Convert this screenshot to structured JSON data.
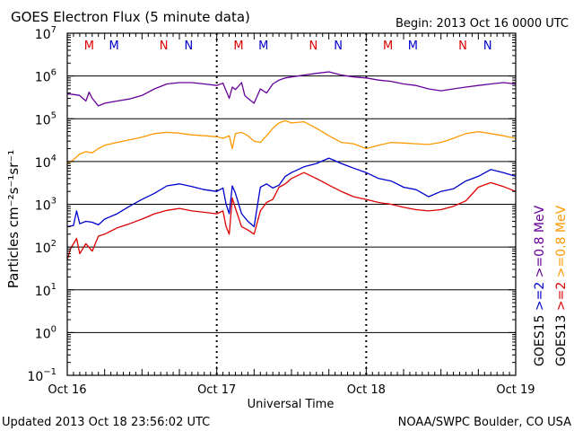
{
  "chart_data": {
    "type": "line",
    "title": "GOES Electron Flux (5 minute data)",
    "begin_label": "Begin: 2013 Oct 16 0000 UTC",
    "xlabel": "Universal Time",
    "ylabel": "Particles cm⁻²s⁻¹sr⁻¹",
    "updated_label": "Updated 2013 Oct 18 23:56:02 UTC",
    "source_label": "NOAA/SWPC Boulder, CO USA",
    "y_scale": "log",
    "ylim": [
      0.1,
      10000000
    ],
    "y_ticks": [
      {
        "value": 0.1,
        "base": "10",
        "exp": "−1"
      },
      {
        "value": 1,
        "base": "10",
        "exp": "0"
      },
      {
        "value": 10,
        "base": "10",
        "exp": "1"
      },
      {
        "value": 100,
        "base": "10",
        "exp": "2"
      },
      {
        "value": 1000,
        "base": "10",
        "exp": "3"
      },
      {
        "value": 10000,
        "base": "10",
        "exp": "4"
      },
      {
        "value": 100000,
        "base": "10",
        "exp": "5"
      },
      {
        "value": 1000000,
        "base": "10",
        "exp": "6"
      },
      {
        "value": 10000000,
        "base": "10",
        "exp": "7"
      }
    ],
    "xlim": [
      0,
      72
    ],
    "x_ticks": [
      {
        "hour": 0,
        "label": "Oct 16"
      },
      {
        "hour": 24,
        "label": "Oct 17"
      },
      {
        "hour": 48,
        "label": "Oct 18"
      },
      {
        "hour": 72,
        "label": "Oct 19"
      }
    ],
    "grid": true,
    "threshold": 1000,
    "markers": [
      {
        "hour": 3.5,
        "label": "M",
        "color": "#dd0000"
      },
      {
        "hour": 7.5,
        "label": "M",
        "color": "#0000cc"
      },
      {
        "hour": 15.5,
        "label": "N",
        "color": "#dd0000"
      },
      {
        "hour": 19.5,
        "label": "N",
        "color": "#0000cc"
      },
      {
        "hour": 27.5,
        "label": "M",
        "color": "#dd0000"
      },
      {
        "hour": 31.5,
        "label": "M",
        "color": "#0000cc"
      },
      {
        "hour": 39.5,
        "label": "N",
        "color": "#dd0000"
      },
      {
        "hour": 43.5,
        "label": "N",
        "color": "#0000cc"
      },
      {
        "hour": 51.5,
        "label": "M",
        "color": "#dd0000"
      },
      {
        "hour": 55.5,
        "label": "M",
        "color": "#0000cc"
      },
      {
        "hour": 63.5,
        "label": "N",
        "color": "#dd0000"
      },
      {
        "hour": 67.5,
        "label": "N",
        "color": "#0000cc"
      }
    ],
    "legend": {
      "position": "right",
      "columns": [
        {
          "satellite": "GOES15",
          "items": [
            {
              "text": ">=2",
              "color": "#0000cc"
            },
            {
              "text": ">=0.8 MeV",
              "color": "#660099"
            }
          ]
        },
        {
          "satellite": "GOES13",
          "items": [
            {
              "text": ">=2",
              "color": "#dd0000"
            },
            {
              "text": ">=0.8 MeV",
              "color": "#ff9900"
            }
          ]
        }
      ]
    },
    "series": [
      {
        "satellite": "GOES15",
        "energy": ">=0.8 MeV",
        "color": "#660099",
        "x": [
          0,
          1,
          2,
          3,
          3.5,
          4,
          5,
          6,
          8,
          10,
          12,
          14,
          16,
          18,
          20,
          22,
          24,
          25,
          26,
          26.5,
          27,
          28,
          28.5,
          29,
          30,
          31,
          32,
          33,
          34,
          35,
          36,
          38,
          40,
          42,
          44,
          46,
          48,
          50,
          52,
          54,
          56,
          58,
          60,
          62,
          64,
          66,
          68,
          70,
          72
        ],
        "y": [
          380000,
          370000,
          350000,
          260000,
          420000,
          300000,
          200000,
          230000,
          260000,
          290000,
          350000,
          500000,
          650000,
          700000,
          700000,
          650000,
          600000,
          680000,
          300000,
          550000,
          480000,
          700000,
          350000,
          300000,
          230000,
          500000,
          400000,
          650000,
          800000,
          900000,
          950000,
          1050000,
          1150000,
          1250000,
          1050000,
          950000,
          900000,
          800000,
          750000,
          650000,
          600000,
          500000,
          450000,
          500000,
          550000,
          600000,
          650000,
          700000,
          650000
        ]
      },
      {
        "satellite": "GOES13",
        "energy": ">=0.8 MeV",
        "color": "#ff9900",
        "x": [
          0,
          1,
          2,
          3,
          4,
          5,
          6,
          8,
          10,
          12,
          14,
          16,
          18,
          20,
          22,
          24,
          25,
          26,
          26.5,
          27,
          28,
          29,
          30,
          31,
          32,
          33,
          34,
          35,
          36,
          38,
          40,
          42,
          44,
          46,
          48,
          50,
          52,
          54,
          56,
          58,
          60,
          62,
          64,
          66,
          68,
          70,
          72
        ],
        "y": [
          9000,
          11000,
          15000,
          17000,
          16000,
          20000,
          24000,
          28000,
          32000,
          37000,
          45000,
          48000,
          46000,
          42000,
          40000,
          38000,
          35000,
          40000,
          20000,
          45000,
          48000,
          40000,
          30000,
          28000,
          40000,
          60000,
          80000,
          90000,
          80000,
          85000,
          60000,
          40000,
          28000,
          26000,
          20000,
          24000,
          28000,
          27000,
          26000,
          25000,
          28000,
          35000,
          45000,
          50000,
          45000,
          40000,
          35000
        ]
      },
      {
        "satellite": "GOES15",
        "energy": ">=2",
        "color": "#0000cc",
        "x": [
          0,
          1,
          1.5,
          2,
          3,
          4,
          5,
          6,
          8,
          10,
          12,
          14,
          16,
          18,
          20,
          22,
          24,
          25,
          25.5,
          26,
          26.5,
          27,
          28,
          29,
          30,
          31,
          32,
          33,
          34,
          35,
          36,
          38,
          40,
          42,
          44,
          46,
          48,
          50,
          52,
          54,
          56,
          58,
          60,
          62,
          64,
          66,
          68,
          70,
          72
        ],
        "y": [
          300,
          320,
          700,
          350,
          400,
          380,
          330,
          450,
          600,
          900,
          1300,
          1800,
          2700,
          3000,
          2600,
          2200,
          2000,
          2400,
          1000,
          600,
          2700,
          1800,
          600,
          400,
          300,
          2500,
          3000,
          2400,
          2800,
          4500,
          5500,
          7500,
          9000,
          12000,
          9000,
          7000,
          5500,
          4000,
          3500,
          2500,
          2200,
          1500,
          2000,
          2300,
          3500,
          4500,
          6500,
          5500,
          4500
        ]
      },
      {
        "satellite": "GOES13",
        "energy": ">=2",
        "color": "#dd0000",
        "x": [
          0,
          0.5,
          1,
          1.5,
          2,
          3,
          4,
          5,
          6,
          8,
          10,
          12,
          14,
          16,
          18,
          20,
          22,
          24,
          25,
          25.5,
          26,
          26.5,
          27,
          28,
          29,
          30,
          31,
          32,
          33,
          34,
          35,
          36,
          38,
          40,
          42,
          44,
          46,
          48,
          50,
          52,
          54,
          56,
          58,
          60,
          62,
          64,
          66,
          68,
          70,
          72
        ],
        "y": [
          50,
          90,
          120,
          160,
          70,
          120,
          80,
          180,
          200,
          280,
          350,
          450,
          600,
          720,
          800,
          700,
          650,
          600,
          700,
          300,
          200,
          1400,
          800,
          300,
          250,
          200,
          700,
          1100,
          1300,
          2500,
          3000,
          4000,
          5500,
          4000,
          2800,
          2000,
          1500,
          1300,
          1100,
          1000,
          850,
          750,
          700,
          750,
          900,
          1200,
          2500,
          3200,
          2600,
          2000
        ]
      }
    ]
  }
}
